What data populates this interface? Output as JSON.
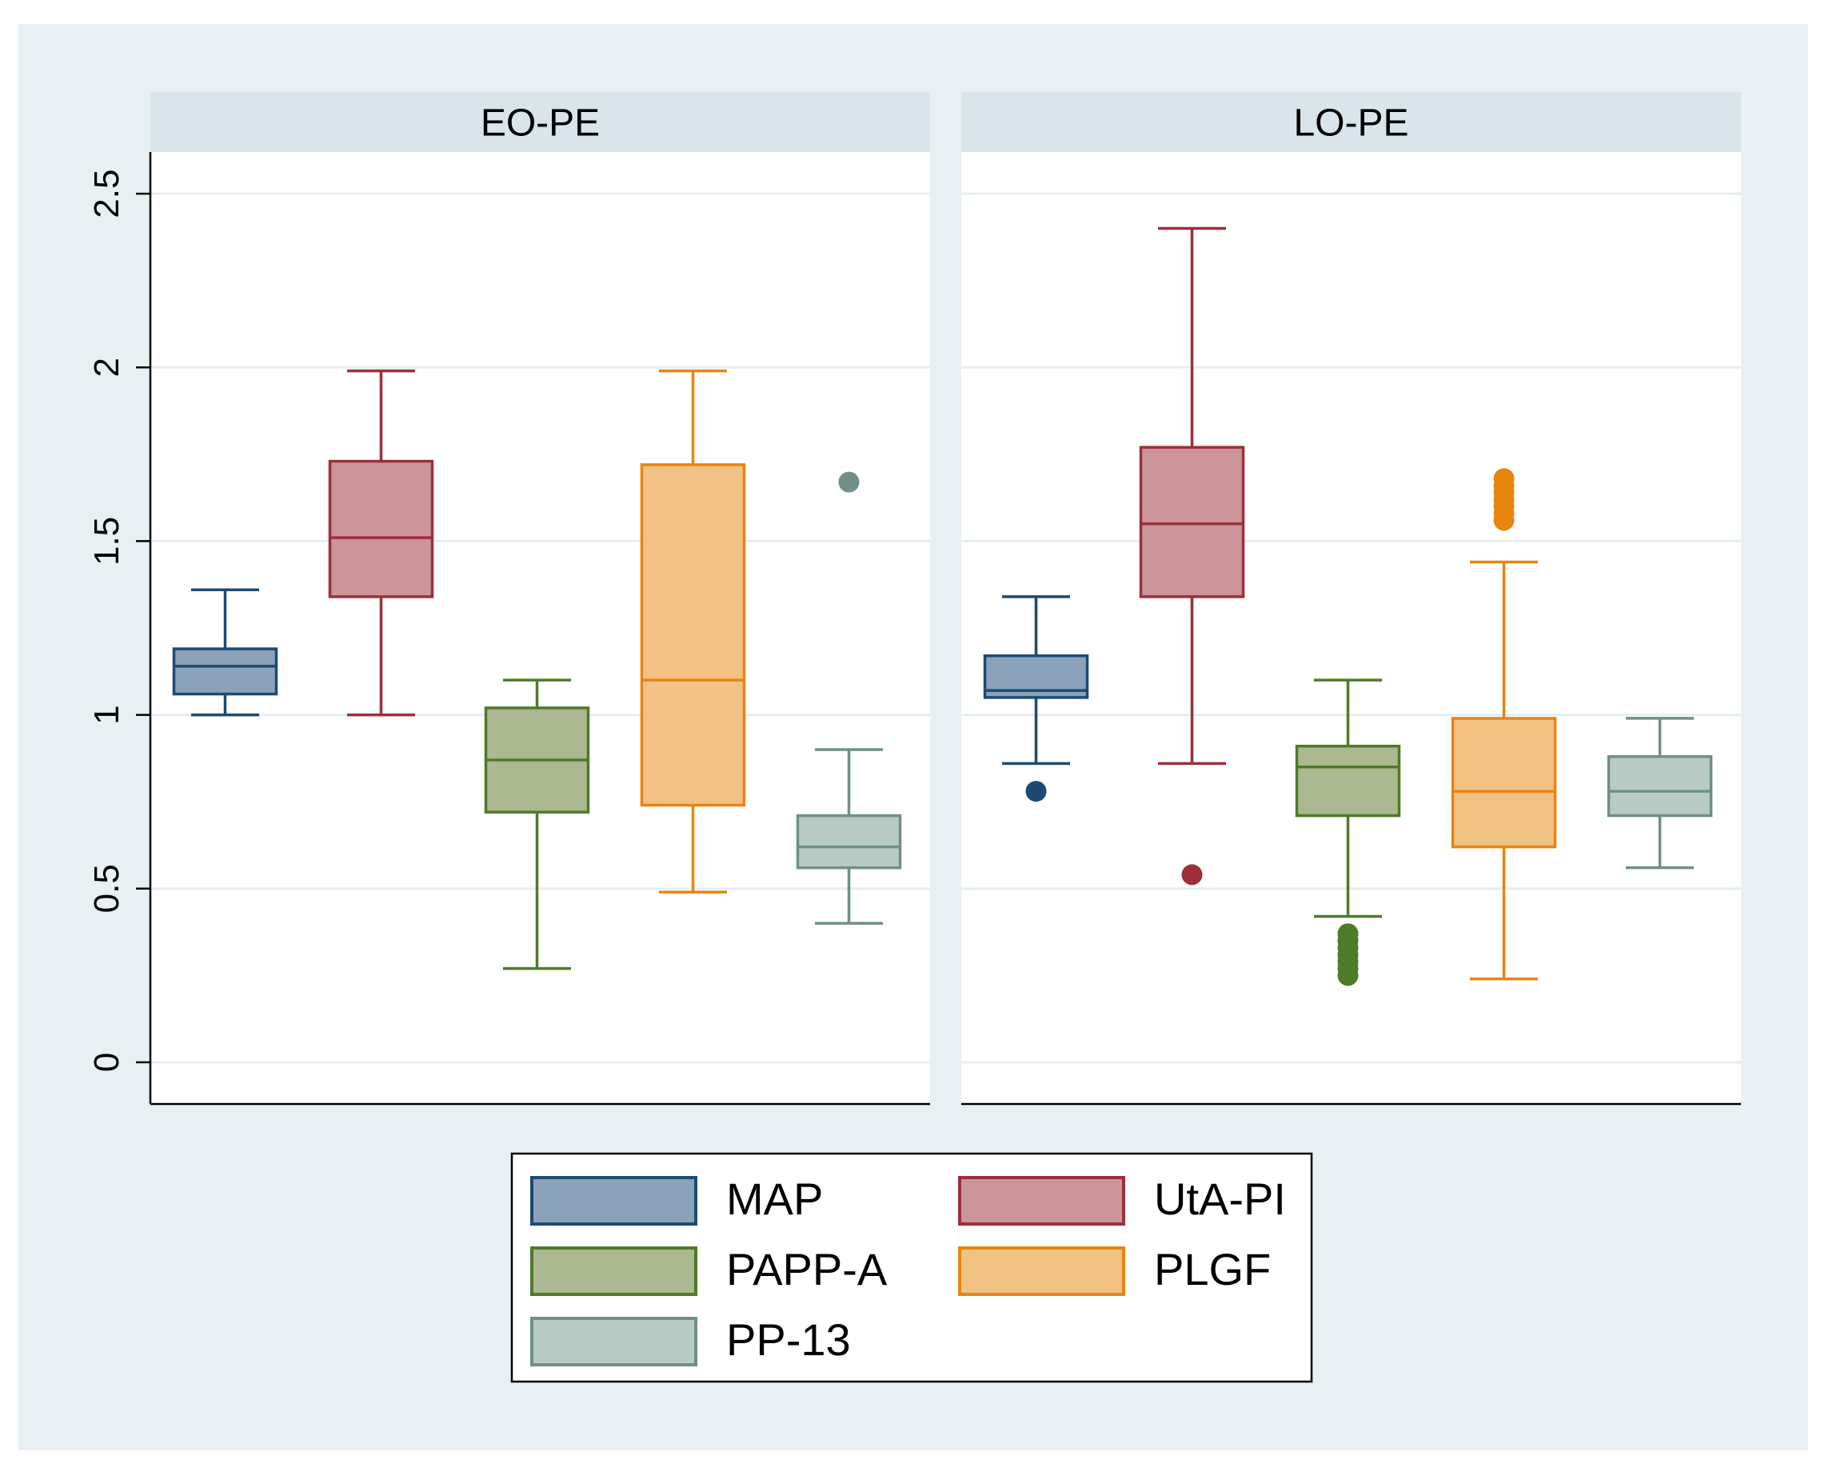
{
  "chart_data": {
    "type": "boxplot",
    "panels": [
      {
        "title": "EO-PE",
        "boxes": [
          {
            "series": "MAP",
            "min": 1.0,
            "q1": 1.06,
            "median": 1.14,
            "q3": 1.19,
            "max": 1.36,
            "outliers": []
          },
          {
            "series": "UtA-PI",
            "min": 1.0,
            "q1": 1.34,
            "median": 1.51,
            "q3": 1.73,
            "max": 1.99,
            "outliers": []
          },
          {
            "series": "PAPP-A",
            "min": 0.27,
            "q1": 0.72,
            "median": 0.87,
            "q3": 1.02,
            "max": 1.1,
            "outliers": []
          },
          {
            "series": "PLGF",
            "min": 0.49,
            "q1": 0.74,
            "median": 1.1,
            "q3": 1.72,
            "max": 1.99,
            "outliers": []
          },
          {
            "series": "PP-13",
            "min": 0.4,
            "q1": 0.56,
            "median": 0.62,
            "q3": 0.71,
            "max": 0.9,
            "outliers": [
              1.67
            ]
          }
        ]
      },
      {
        "title": "LO-PE",
        "boxes": [
          {
            "series": "MAP",
            "min": 0.86,
            "q1": 1.05,
            "median": 1.07,
            "q3": 1.17,
            "max": 1.34,
            "outliers": [
              0.78
            ]
          },
          {
            "series": "UtA-PI",
            "min": 0.86,
            "q1": 1.34,
            "median": 1.55,
            "q3": 1.77,
            "max": 2.4,
            "outliers": [
              0.54
            ]
          },
          {
            "series": "PAPP-A",
            "min": 0.42,
            "q1": 0.71,
            "median": 0.85,
            "q3": 0.91,
            "max": 1.1,
            "outliers": [
              0.25,
              0.27,
              0.29,
              0.31,
              0.33,
              0.35,
              0.37
            ]
          },
          {
            "series": "PLGF",
            "min": 0.24,
            "q1": 0.62,
            "median": 0.78,
            "q3": 0.99,
            "max": 1.44,
            "outliers": [
              1.56,
              1.58,
              1.6,
              1.62,
              1.64,
              1.66,
              1.68
            ]
          },
          {
            "series": "PP-13",
            "min": 0.56,
            "q1": 0.71,
            "median": 0.78,
            "q3": 0.88,
            "max": 0.99,
            "outliers": []
          }
        ]
      }
    ],
    "y_axis": {
      "min": 0,
      "max": 2.5,
      "ticks": [
        "0",
        "0.5",
        "1",
        "1.5",
        "2",
        "2.5"
      ]
    },
    "ylim": [
      -0.12,
      2.62
    ],
    "legend": {
      "placement": "bottom",
      "items": [
        {
          "label": "MAP",
          "fill": "#8aa2ba",
          "stroke": "#1e4a72"
        },
        {
          "label": "UtA-PI",
          "fill": "#cc9599",
          "stroke": "#9c2f3a"
        },
        {
          "label": "PAPP-A",
          "fill": "#abb891",
          "stroke": "#4f7a28"
        },
        {
          "label": "PLGF",
          "fill": "#f2c184",
          "stroke": "#e8850f"
        },
        {
          "label": "PP-13",
          "fill": "#b8cbc5",
          "stroke": "#6f8f88"
        }
      ]
    },
    "colors": {
      "background": "#e8f0f3",
      "plot_background": "#ffffff",
      "strip_background": "#d9e5eb",
      "gridline": "#e6eef1",
      "axis": "#000000"
    }
  }
}
